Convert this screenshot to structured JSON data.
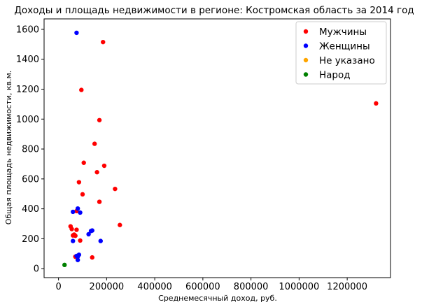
{
  "chart_data": {
    "type": "scatter",
    "title": "Доходы и площадь недвижимости в регионе: Костромская область за 2014 год",
    "xlabel": "Среднемесячный доход, руб.",
    "ylabel": "Общая площадь недвижимости, кв.м.",
    "xlim": [
      -60000,
      1380000
    ],
    "ylim": [
      -60,
      1670
    ],
    "xticks": [
      0,
      200000,
      400000,
      600000,
      800000,
      1000000,
      1200000
    ],
    "xtick_labels": [
      "0",
      "200000",
      "400000",
      "600000",
      "800000",
      "1000000",
      "1200000"
    ],
    "yticks": [
      0,
      200,
      400,
      600,
      800,
      1000,
      1200,
      1400,
      1600
    ],
    "ytick_labels": [
      "0",
      "200",
      "400",
      "600",
      "800",
      "1000",
      "1200",
      "1400",
      "1600"
    ],
    "grid": false,
    "legend_position": "top-right",
    "series": [
      {
        "name": "Мужчины",
        "color": "#ff0000",
        "points": [
          [
            185000,
            1515
          ],
          [
            95000,
            1195
          ],
          [
            1320000,
            1105
          ],
          [
            170000,
            993
          ],
          [
            150000,
            835
          ],
          [
            105000,
            708
          ],
          [
            190000,
            688
          ],
          [
            160000,
            645
          ],
          [
            85000,
            578
          ],
          [
            235000,
            533
          ],
          [
            100000,
            497
          ],
          [
            170000,
            447
          ],
          [
            75000,
            385
          ],
          [
            255000,
            292
          ],
          [
            50000,
            283
          ],
          [
            55000,
            265
          ],
          [
            75000,
            260
          ],
          [
            65000,
            228
          ],
          [
            60000,
            222
          ],
          [
            70000,
            220
          ],
          [
            90000,
            188
          ],
          [
            70000,
            80
          ],
          [
            140000,
            75
          ]
        ]
      },
      {
        "name": "Женщины",
        "color": "#0000ff",
        "points": [
          [
            75000,
            1577
          ],
          [
            80000,
            402
          ],
          [
            60000,
            380
          ],
          [
            90000,
            375
          ],
          [
            140000,
            255
          ],
          [
            135000,
            252
          ],
          [
            125000,
            230
          ],
          [
            60000,
            185
          ],
          [
            175000,
            185
          ],
          [
            85000,
            93
          ],
          [
            75000,
            85
          ],
          [
            80000,
            80
          ],
          [
            80000,
            58
          ]
        ]
      },
      {
        "name": "Не указано",
        "color": "#ffa500",
        "points": []
      },
      {
        "name": "Народ",
        "color": "#008000",
        "points": [
          [
            25000,
            25
          ]
        ]
      }
    ]
  }
}
